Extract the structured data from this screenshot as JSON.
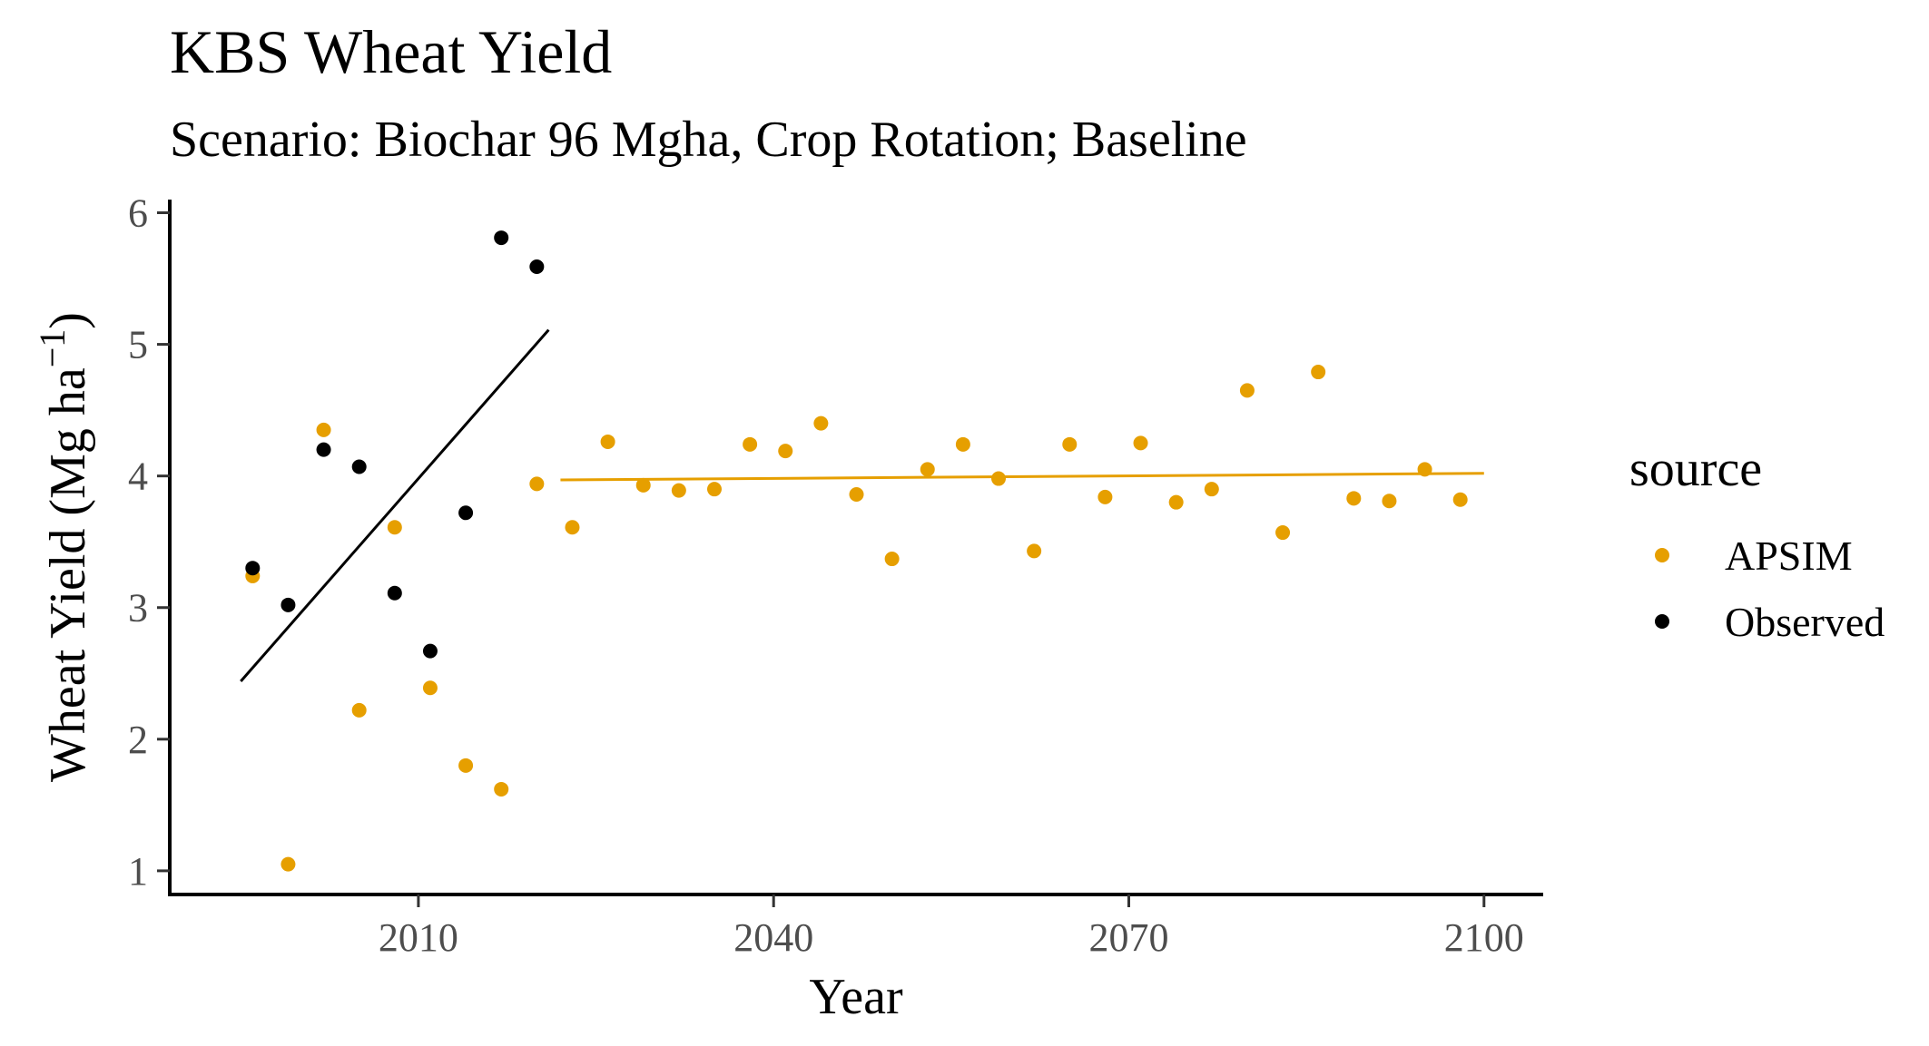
{
  "chart_data": {
    "type": "scatter",
    "title": "KBS Wheat Yield",
    "subtitle": "Scenario: Biochar 96 Mgha, Crop Rotation; Baseline",
    "xlabel": "Year",
    "ylabel_main": "Wheat Yield (Mg ha",
    "ylabel_sup": "−1",
    "ylabel_close": ")",
    "xlim": [
      1989,
      2105
    ],
    "ylim": [
      0.82,
      6.1
    ],
    "x_ticks": [
      2010,
      2040,
      2070,
      2100
    ],
    "y_ticks": [
      1,
      2,
      3,
      4,
      5,
      6
    ],
    "grid": false,
    "legend": {
      "title": "source",
      "position": "right",
      "entries": [
        {
          "label": "APSIM",
          "color": "#E69F00"
        },
        {
          "label": "Observed",
          "color": "#000000"
        }
      ]
    },
    "series": [
      {
        "name": "APSIM",
        "color": "#E69F00",
        "points": [
          {
            "x": 1996,
            "y": 3.24
          },
          {
            "x": 1999,
            "y": 1.05
          },
          {
            "x": 2002,
            "y": 4.35
          },
          {
            "x": 2005,
            "y": 2.22
          },
          {
            "x": 2008,
            "y": 3.61
          },
          {
            "x": 2011,
            "y": 2.39
          },
          {
            "x": 2014,
            "y": 1.8
          },
          {
            "x": 2017,
            "y": 1.62
          },
          {
            "x": 2020,
            "y": 3.94
          },
          {
            "x": 2023,
            "y": 3.61
          },
          {
            "x": 2026,
            "y": 4.26
          },
          {
            "x": 2029,
            "y": 3.93
          },
          {
            "x": 2032,
            "y": 3.89
          },
          {
            "x": 2035,
            "y": 3.9
          },
          {
            "x": 2038,
            "y": 4.24
          },
          {
            "x": 2041,
            "y": 4.19
          },
          {
            "x": 2044,
            "y": 4.4
          },
          {
            "x": 2047,
            "y": 3.86
          },
          {
            "x": 2050,
            "y": 3.37
          },
          {
            "x": 2053,
            "y": 4.05
          },
          {
            "x": 2056,
            "y": 4.24
          },
          {
            "x": 2059,
            "y": 3.98
          },
          {
            "x": 2062,
            "y": 3.43
          },
          {
            "x": 2065,
            "y": 4.24
          },
          {
            "x": 2068,
            "y": 3.84
          },
          {
            "x": 2071,
            "y": 4.25
          },
          {
            "x": 2074,
            "y": 3.8
          },
          {
            "x": 2077,
            "y": 3.9
          },
          {
            "x": 2080,
            "y": 4.65
          },
          {
            "x": 2083,
            "y": 3.57
          },
          {
            "x": 2086,
            "y": 4.79
          },
          {
            "x": 2089,
            "y": 3.83
          },
          {
            "x": 2092,
            "y": 3.81
          },
          {
            "x": 2095,
            "y": 4.05
          },
          {
            "x": 2098,
            "y": 3.82
          }
        ],
        "trend": {
          "x": [
            2022,
            2100
          ],
          "y": [
            3.97,
            4.02
          ]
        }
      },
      {
        "name": "Observed",
        "color": "#000000",
        "points": [
          {
            "x": 1996,
            "y": 3.3
          },
          {
            "x": 1999,
            "y": 3.02
          },
          {
            "x": 2002,
            "y": 4.2
          },
          {
            "x": 2005,
            "y": 4.07
          },
          {
            "x": 2008,
            "y": 3.11
          },
          {
            "x": 2011,
            "y": 2.67
          },
          {
            "x": 2014,
            "y": 3.72
          },
          {
            "x": 2017,
            "y": 5.81
          },
          {
            "x": 2020,
            "y": 5.59
          }
        ],
        "trend": {
          "x": [
            1995,
            2021
          ],
          "y": [
            2.44,
            5.11
          ]
        }
      }
    ]
  }
}
